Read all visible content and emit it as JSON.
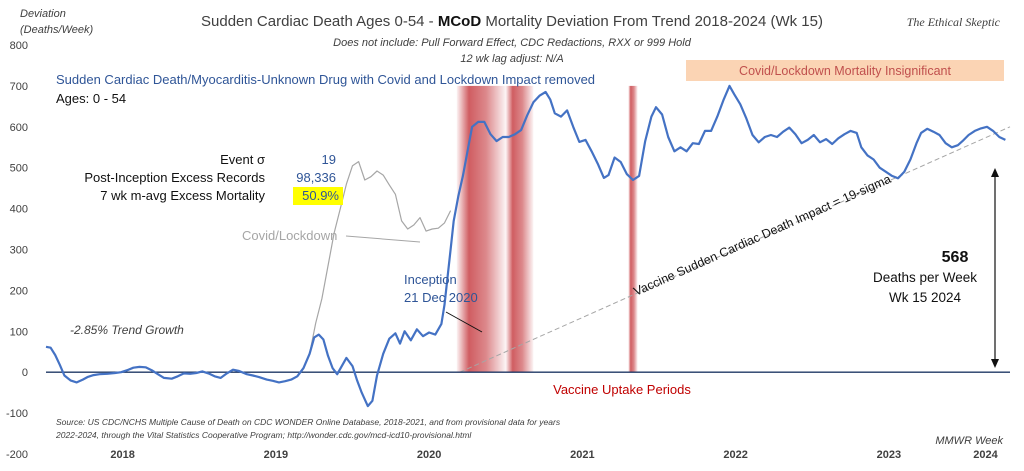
{
  "colors": {
    "series": "#4472c4",
    "covid": "#a6a6a6",
    "trend": "#a6a6a6",
    "vaccine_band": "#c0272d",
    "note_band": "#fbd4b4",
    "highlight": "#ffff00",
    "baseline": "#1f3864"
  },
  "chart_data": {
    "type": "line",
    "title_prefix": "Sudden Cardiac Death Ages 0-54 - ",
    "title_bold": "MCoD",
    "title_suffix": " Mortality Deviation From Trend  2018-2024 (Wk 15)",
    "subtitle_1": "Does not include: Pull Forward Effect,  CDC Redactions, RXX or 999 Hold",
    "subtitle_2": "12 wk lag adjust: N/A",
    "brand": "The Ethical Skeptic",
    "ylabel_1": "Deviation",
    "ylabel_2": "(Deaths/Week)",
    "xlabel": "MMWR Week",
    "ylim": [
      -200,
      800
    ],
    "yticks": [
      -200,
      -100,
      0,
      100,
      200,
      300,
      400,
      500,
      600,
      700,
      800
    ],
    "xlim": [
      2018.0,
      2024.29
    ],
    "year_labels": [
      {
        "label": "2018",
        "x": 2018.5
      },
      {
        "label": "2019",
        "x": 2019.5
      },
      {
        "label": "2020",
        "x": 2020.5
      },
      {
        "label": "2021",
        "x": 2021.5
      },
      {
        "label": "2022",
        "x": 2022.5
      },
      {
        "label": "2023",
        "x": 2023.5
      },
      {
        "label": "2024",
        "x": 2024.13
      }
    ],
    "series": [
      {
        "name": "Sudden Cardiac Death/Myocarditis-Unknown Drug with Covid and Lockdown Impact removed",
        "points": [
          [
            2018.0,
            62
          ],
          [
            2018.03,
            60
          ],
          [
            2018.06,
            42
          ],
          [
            2018.09,
            18
          ],
          [
            2018.12,
            -8
          ],
          [
            2018.16,
            -20
          ],
          [
            2018.2,
            -25
          ],
          [
            2018.24,
            -18
          ],
          [
            2018.27,
            -12
          ],
          [
            2018.31,
            -7
          ],
          [
            2018.35,
            -5
          ],
          [
            2018.4,
            -4
          ],
          [
            2018.45,
            -2
          ],
          [
            2018.49,
            0
          ],
          [
            2018.53,
            5
          ],
          [
            2018.57,
            11
          ],
          [
            2018.61,
            13
          ],
          [
            2018.65,
            12
          ],
          [
            2018.69,
            5
          ],
          [
            2018.73,
            -5
          ],
          [
            2018.77,
            -14
          ],
          [
            2018.82,
            -16
          ],
          [
            2018.86,
            -10
          ],
          [
            2018.9,
            -3
          ],
          [
            2018.94,
            -4
          ],
          [
            2018.98,
            -2
          ],
          [
            2019.02,
            2
          ],
          [
            2019.06,
            -3
          ],
          [
            2019.1,
            -10
          ],
          [
            2019.14,
            -14
          ],
          [
            2019.18,
            -3
          ],
          [
            2019.22,
            6
          ],
          [
            2019.26,
            3
          ],
          [
            2019.31,
            -5
          ],
          [
            2019.35,
            -8
          ],
          [
            2019.39,
            -12
          ],
          [
            2019.44,
            -18
          ],
          [
            2019.48,
            -21
          ],
          [
            2019.52,
            -25
          ],
          [
            2019.56,
            -22
          ],
          [
            2019.6,
            -18
          ],
          [
            2019.64,
            -10
          ],
          [
            2019.68,
            10
          ],
          [
            2019.72,
            45
          ],
          [
            2019.75,
            85
          ],
          [
            2019.78,
            92
          ],
          [
            2019.81,
            80
          ],
          [
            2019.84,
            40
          ],
          [
            2019.87,
            10
          ],
          [
            2019.9,
            -5
          ],
          [
            2019.93,
            15
          ],
          [
            2019.96,
            35
          ],
          [
            2020.0,
            15
          ],
          [
            2020.03,
            -20
          ],
          [
            2020.06,
            -50
          ],
          [
            2020.1,
            -83
          ],
          [
            2020.13,
            -70
          ],
          [
            2020.16,
            -8
          ],
          [
            2020.2,
            45
          ],
          [
            2020.24,
            82
          ],
          [
            2020.28,
            95
          ],
          [
            2020.31,
            70
          ],
          [
            2020.34,
            100
          ],
          [
            2020.38,
            78
          ],
          [
            2020.42,
            105
          ],
          [
            2020.46,
            88
          ],
          [
            2020.5,
            97
          ],
          [
            2020.54,
            92
          ],
          [
            2020.58,
            118
          ],
          [
            2020.6,
            165
          ],
          [
            2020.64,
            300
          ],
          [
            2020.66,
            370
          ],
          [
            2020.69,
            430
          ],
          [
            2020.72,
            480
          ],
          [
            2020.75,
            540
          ],
          [
            2020.78,
            600
          ],
          [
            2020.82,
            612
          ],
          [
            2020.86,
            612
          ],
          [
            2020.9,
            582
          ],
          [
            2020.94,
            565
          ],
          [
            2020.98,
            575
          ],
          [
            2021.02,
            575
          ],
          [
            2021.06,
            582
          ],
          [
            2021.1,
            592
          ],
          [
            2021.14,
            628
          ],
          [
            2021.18,
            660
          ],
          [
            2021.22,
            676
          ],
          [
            2021.26,
            685
          ],
          [
            2021.29,
            667
          ],
          [
            2021.32,
            633
          ],
          [
            2021.36,
            625
          ],
          [
            2021.4,
            640
          ],
          [
            2021.44,
            600
          ],
          [
            2021.48,
            563
          ],
          [
            2021.52,
            568
          ],
          [
            2021.56,
            540
          ],
          [
            2021.6,
            510
          ],
          [
            2021.64,
            475
          ],
          [
            2021.67,
            482
          ],
          [
            2021.71,
            525
          ],
          [
            2021.75,
            514
          ],
          [
            2021.79,
            484
          ],
          [
            2021.83,
            470
          ],
          [
            2021.87,
            480
          ],
          [
            2021.91,
            565
          ],
          [
            2021.95,
            625
          ],
          [
            2021.98,
            648
          ],
          [
            2022.02,
            630
          ],
          [
            2022.06,
            575
          ],
          [
            2022.1,
            540
          ],
          [
            2022.14,
            550
          ],
          [
            2022.18,
            540
          ],
          [
            2022.22,
            560
          ],
          [
            2022.26,
            558
          ],
          [
            2022.3,
            590
          ],
          [
            2022.34,
            590
          ],
          [
            2022.38,
            625
          ],
          [
            2022.42,
            665
          ],
          [
            2022.46,
            700
          ],
          [
            2022.49,
            680
          ],
          [
            2022.53,
            655
          ],
          [
            2022.57,
            620
          ],
          [
            2022.61,
            580
          ],
          [
            2022.65,
            562
          ],
          [
            2022.69,
            575
          ],
          [
            2022.73,
            580
          ],
          [
            2022.77,
            575
          ],
          [
            2022.81,
            588
          ],
          [
            2022.85,
            598
          ],
          [
            2022.89,
            582
          ],
          [
            2022.93,
            560
          ],
          [
            2022.97,
            568
          ],
          [
            2023.01,
            580
          ],
          [
            2023.05,
            562
          ],
          [
            2023.09,
            570
          ],
          [
            2023.13,
            558
          ],
          [
            2023.17,
            572
          ],
          [
            2023.21,
            582
          ],
          [
            2023.25,
            590
          ],
          [
            2023.29,
            585
          ],
          [
            2023.32,
            550
          ],
          [
            2023.36,
            530
          ],
          [
            2023.4,
            520
          ],
          [
            2023.44,
            500
          ],
          [
            2023.48,
            490
          ],
          [
            2023.52,
            480
          ],
          [
            2023.56,
            474
          ],
          [
            2023.6,
            490
          ],
          [
            2023.64,
            520
          ],
          [
            2023.68,
            560
          ],
          [
            2023.71,
            585
          ],
          [
            2023.75,
            595
          ],
          [
            2023.79,
            588
          ],
          [
            2023.83,
            580
          ],
          [
            2023.87,
            560
          ],
          [
            2023.91,
            550
          ],
          [
            2023.95,
            555
          ],
          [
            2023.98,
            565
          ],
          [
            2024.02,
            580
          ],
          [
            2024.06,
            590
          ],
          [
            2024.1,
            596
          ],
          [
            2024.14,
            600
          ],
          [
            2024.18,
            590
          ],
          [
            2024.22,
            575
          ],
          [
            2024.26,
            568
          ]
        ]
      },
      {
        "name": "Covid/Lockdown",
        "points": [
          [
            2019.72,
            45
          ],
          [
            2019.76,
            120
          ],
          [
            2019.8,
            180
          ],
          [
            2019.84,
            260
          ],
          [
            2019.88,
            340
          ],
          [
            2019.92,
            400
          ],
          [
            2019.96,
            460
          ],
          [
            2020.0,
            505
          ],
          [
            2020.04,
            515
          ],
          [
            2020.08,
            470
          ],
          [
            2020.12,
            478
          ],
          [
            2020.16,
            492
          ],
          [
            2020.2,
            482
          ],
          [
            2020.24,
            458
          ],
          [
            2020.28,
            435
          ],
          [
            2020.32,
            370
          ],
          [
            2020.36,
            350
          ],
          [
            2020.4,
            360
          ],
          [
            2020.44,
            378
          ],
          [
            2020.48,
            345
          ],
          [
            2020.52,
            350
          ],
          [
            2020.56,
            352
          ],
          [
            2020.6,
            365
          ],
          [
            2020.64,
            395
          ]
        ]
      }
    ],
    "trend_line": {
      "label": "Vaccine Sudden Cardiac Death Impact = 19-sigma",
      "from": [
        2020.7,
        0
      ],
      "to": [
        2024.29,
        600
      ]
    },
    "vaccine_bands": [
      {
        "start": 2020.68,
        "end": 2021.0
      },
      {
        "start": 2021.0,
        "end": 2021.18
      },
      {
        "start": 2021.8,
        "end": 2021.86
      }
    ],
    "annotations": {
      "series_label": "Sudden Cardiac Death/Myocarditis-Unknown Drug with Covid and Lockdown Impact removed",
      "ages": "Ages: 0 - 54",
      "event_sigma_label": "Event σ",
      "event_sigma_value": "19",
      "excess_records_label": "Post-Inception Excess Records",
      "excess_records_value": "98,336",
      "mavg_label": "7 wk m-avg Excess Mortality",
      "mavg_value": "50.9%",
      "covid_label": "Covid/Lockdown",
      "inception_1": "Inception",
      "inception_2": "21 Dec 2020",
      "trend_growth": "-2.85% Trend Growth",
      "insignificant": "Covid/Lockdown Mortality Insignificant",
      "vaccine_uptake": "Vaccine Uptake Periods",
      "deaths_value": "568",
      "deaths_label_1": "Deaths per Week",
      "deaths_label_2": "Wk 15 2024",
      "source_1": "Source: US CDC/NCHS Multiple Cause of Death on CDC WONDER Online Database, 2018-2021, and from provisional data for years",
      "source_2": "2022-2024, through the Vital Statistics Cooperative Program; http://wonder.cdc.gov/mcd-icd10-provisional.html"
    }
  }
}
